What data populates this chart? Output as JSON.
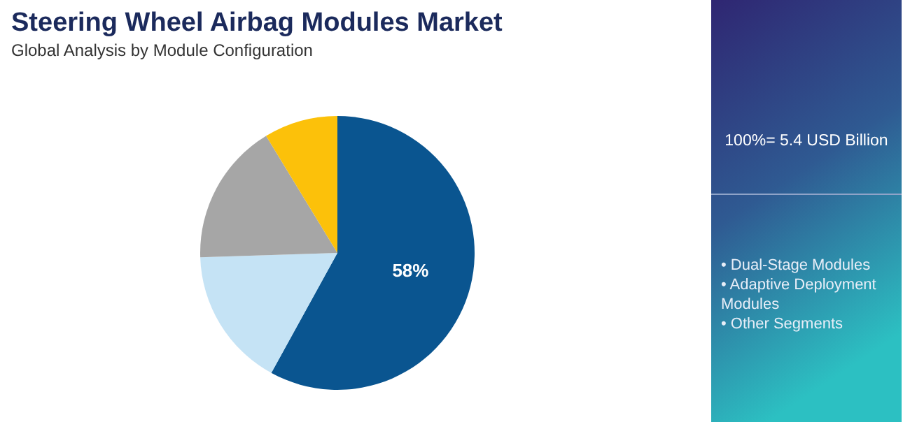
{
  "chart_data": {
    "type": "pie",
    "title": "Steering Wheel Airbag Modules Market",
    "subtitle": "Global Analysis by Module Configuration",
    "categories": [
      null,
      null,
      null,
      null
    ],
    "values": [
      58,
      16.5,
      16.8,
      8.7
    ],
    "colors": [
      "#0a5590",
      "#c5e3f5",
      "#a6a6a6",
      "#fcc10a"
    ],
    "value_labels": [
      "58%",
      null,
      null,
      null
    ],
    "annotations": [
      "100%= 5.4 USD Billion",
      "• Dual-Stage Modules",
      "• Adaptive Deployment Modules",
      "• Other Segments"
    ]
  }
}
